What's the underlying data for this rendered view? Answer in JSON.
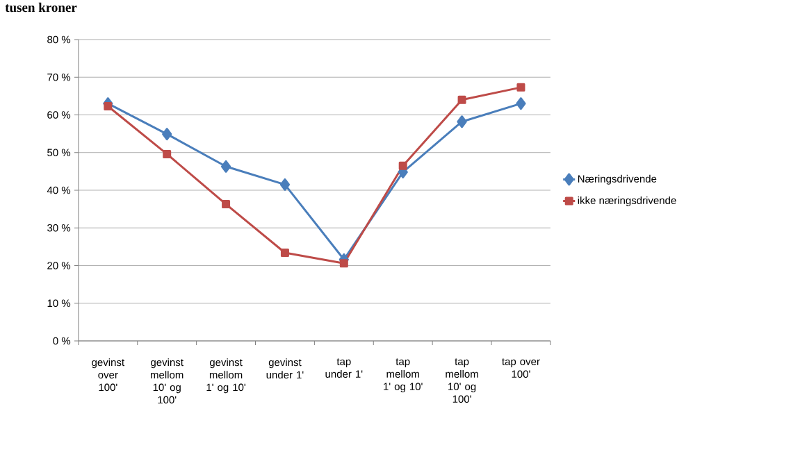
{
  "chart_data": {
    "type": "line",
    "title": "tusen kroner",
    "categories": [
      "gevinst over 100'",
      "gevinst mellom 10' og 100'",
      "gevinst mellom 1' og 10'",
      "gevinst under 1'",
      "tap under 1'",
      "tap mellom 1' og 10'",
      "tap mellom 10' og 100'",
      "tap over 100'"
    ],
    "series": [
      {
        "name": "Næringsdrivende",
        "color": "#4a7ebb",
        "marker": "diamond",
        "values": [
          63.0,
          54.9,
          46.3,
          41.5,
          21.6,
          44.8,
          58.2,
          63.0
        ]
      },
      {
        "name": "ikke næringsdrivende",
        "color": "#be4b48",
        "marker": "square",
        "values": [
          62.3,
          49.6,
          36.3,
          23.4,
          20.6,
          46.5,
          64.0,
          67.3
        ]
      }
    ],
    "ylim": [
      0,
      80
    ],
    "yticks": [
      {
        "value": 0,
        "label": "0 %"
      },
      {
        "value": 10,
        "label": "10 %"
      },
      {
        "value": 20,
        "label": "20 %"
      },
      {
        "value": 30,
        "label": "30 %"
      },
      {
        "value": 40,
        "label": "40 %"
      },
      {
        "value": 50,
        "label": "50 %"
      },
      {
        "value": 60,
        "label": "60 %"
      },
      {
        "value": 70,
        "label": "70 %"
      },
      {
        "value": 80,
        "label": "80 %"
      }
    ],
    "grid": "y",
    "legend": "right",
    "line_style": "solid"
  }
}
